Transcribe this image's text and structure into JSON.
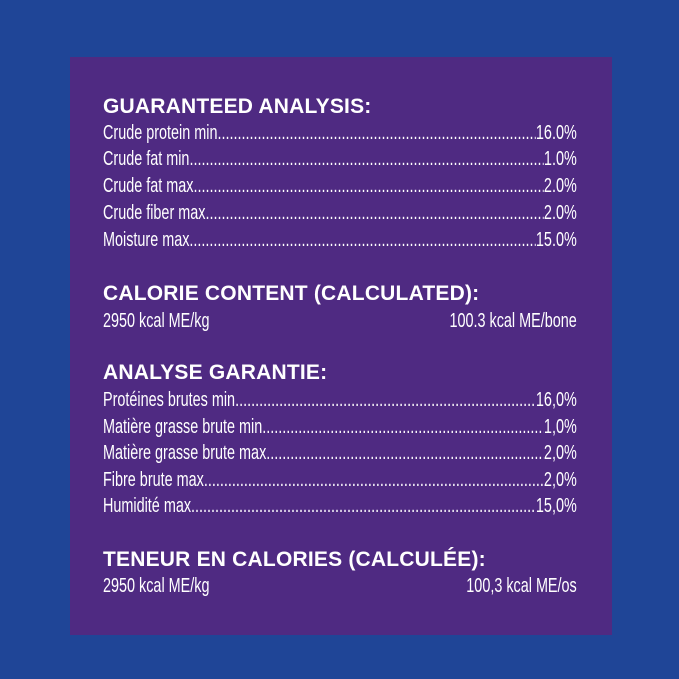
{
  "colors": {
    "background": "#1f4597",
    "panel": "#4f2a82",
    "text": "#ffffff"
  },
  "english": {
    "analysis_title": "GUARANTEED ANALYSIS:",
    "rows": [
      {
        "label": "Crude protein min",
        "value": "16.0%"
      },
      {
        "label": "Crude fat min",
        "value": "1.0%"
      },
      {
        "label": "Crude fat max",
        "value": "2.0%"
      },
      {
        "label": "Crude fiber max",
        "value": "2.0%"
      },
      {
        "label": "Moisture max",
        "value": "15.0%"
      }
    ],
    "calorie_title": "CALORIE CONTENT (CALCULATED):",
    "calorie_per_kg": "2950 kcal ME/kg",
    "calorie_per_unit": "100.3 kcal ME/bone"
  },
  "french": {
    "analysis_title": "ANALYSE GARANTIE:",
    "rows": [
      {
        "label": "Protéines brutes min",
        "value": "16,0%"
      },
      {
        "label": "Matière grasse brute min",
        "value": "1,0%"
      },
      {
        "label": "Matière grasse brute max",
        "value": "2,0%"
      },
      {
        "label": "Fibre brute max",
        "value": "2,0%"
      },
      {
        "label": "Humidité max",
        "value": "15,0%"
      }
    ],
    "calorie_title": "TENEUR EN CALORIES (CALCULÉE):",
    "calorie_per_kg": "2950 kcal ME/kg",
    "calorie_per_unit": "100,3 kcal ME/os"
  }
}
